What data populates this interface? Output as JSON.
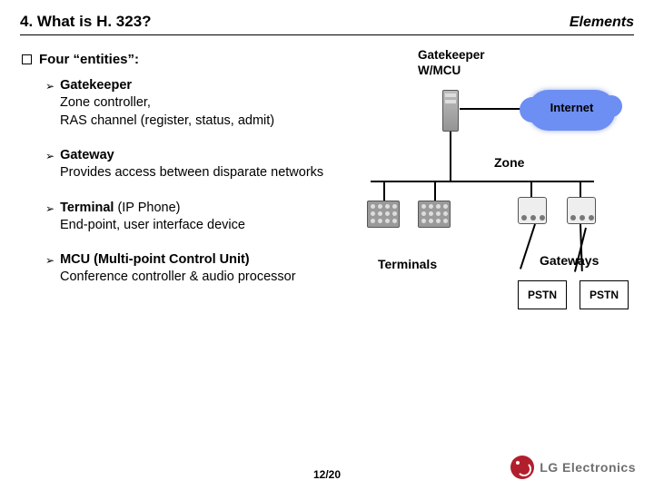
{
  "header": {
    "title": "4. What is H. 323?",
    "subtitle": "Elements"
  },
  "bullet1": "Four “entities”:",
  "entities": [
    {
      "head": "Gatekeeper",
      "after": "",
      "desc": "Zone controller,\nRAS channel (register, status, admit)"
    },
    {
      "head": "Gateway",
      "after": "",
      "desc": "Provides access between disparate networks"
    },
    {
      "head": "Terminal",
      "after": " (IP Phone)",
      "desc": "End-point, user interface device"
    },
    {
      "head": "MCU (Multi-point Control Unit)",
      "after": "",
      "desc": "Conference controller & audio processor"
    }
  ],
  "diagram": {
    "gk_label_l1": "Gatekeeper",
    "gk_label_l2": "W/MCU",
    "cloud": "Internet",
    "zone": "Zone",
    "terminals": "Terminals",
    "gateways": "Gateways",
    "pstn": "PSTN",
    "colors": {
      "cloud": "#6d8ef2",
      "server": "#9a9a9a",
      "line": "#000000"
    }
  },
  "footer": {
    "page": "12/20",
    "logo_text": "LG Electronics",
    "logo_color": "#b11f2d"
  }
}
